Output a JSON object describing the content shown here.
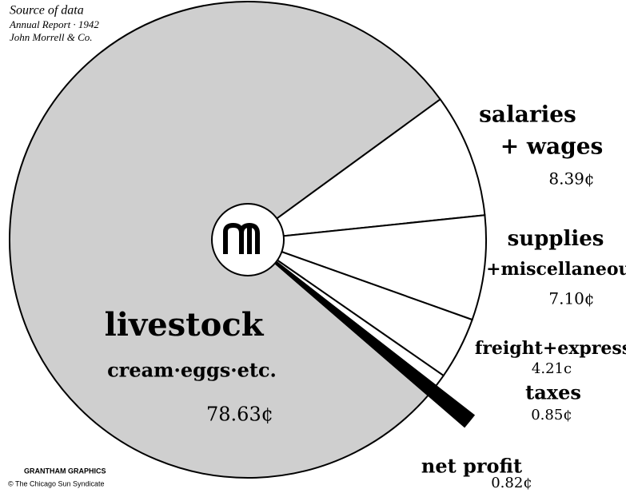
{
  "chart_data": {
    "type": "pie",
    "source": [
      "Source of data",
      "Annual Report · 1942",
      "John Morrell & Co."
    ],
    "credits": [
      "GRANTHAM GRAPHICS",
      "© The Chicago Sun Syndicate"
    ],
    "categories": [
      "livestock",
      "salaries",
      "supplies",
      "freight+express",
      "taxes",
      "net profit"
    ],
    "category_subtitles": [
      "cream·eggs·etc.",
      "+ wages",
      "+miscellaneous",
      null,
      null,
      null
    ],
    "values": [
      78.63,
      8.39,
      7.1,
      4.21,
      0.85,
      0.82
    ],
    "value_labels": [
      "78.63¢",
      "8.39¢",
      "7.10¢",
      "4.21c",
      "0.85¢",
      "0.82¢"
    ],
    "colors": [
      "#cfcfcf",
      "#ffffff",
      "#ffffff",
      "#ffffff",
      "#ffffff",
      "#000000"
    ]
  }
}
